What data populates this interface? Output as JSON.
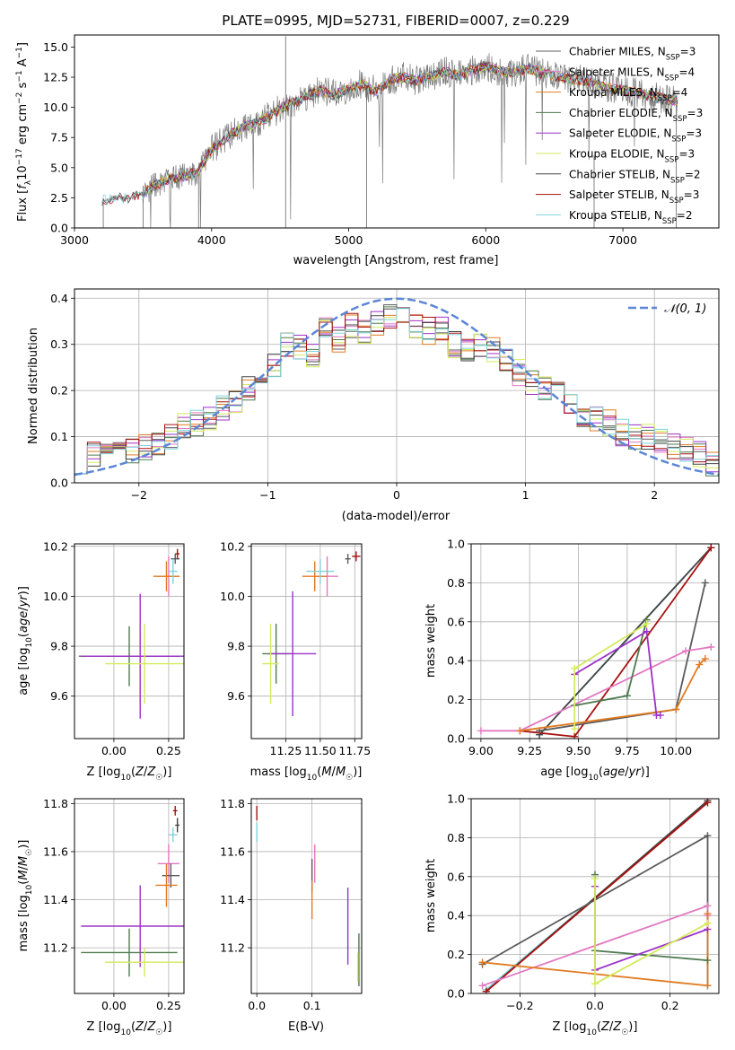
{
  "figure_title": "PLATE=0995, MJD=52731, FIBERID=0007, z=0.229",
  "colors": {
    "Chabrier MILES": "#5b5b5b",
    "Salpeter MILES": "#e377c2",
    "Kroupa MILES": "#e07b20",
    "Chabrier ELODIE": "#4f7a4f",
    "Salpeter ELODIE": "#9d30c9",
    "Kroupa ELODIE": "#d4ea5c",
    "Chabrier STELIB": "#444444",
    "Salpeter STELIB": "#a81010",
    "Kroupa STELIB": "#7fd2dc",
    "normal": "#5c86d6"
  },
  "chart_data": [
    {
      "id": "spectrum",
      "type": "line",
      "title": "PLATE=0995, MJD=52731, FIBERID=0007, z=0.229",
      "xlabel": "wavelength [Angstrom, rest frame]",
      "ylabel": "Flux [f_λ 10^-17 erg cm^-2 s^-1 A^-1]",
      "xlim": [
        3000,
        7700
      ],
      "ylim": [
        0,
        16
      ],
      "xticks": [
        3000,
        4000,
        5000,
        6000,
        7000
      ],
      "yticks": [
        "0.0",
        "2.5",
        "5.0",
        "7.5",
        "10.0",
        "12.5",
        "15.0"
      ],
      "grid": false,
      "legend_position": "top-right",
      "continuum": {
        "x": [
          3200,
          3300,
          3400,
          3500,
          3600,
          3700,
          3800,
          3900,
          4000,
          4100,
          4200,
          4300,
          4400,
          4500,
          4600,
          4700,
          4800,
          4900,
          5000,
          5100,
          5200,
          5300,
          5400,
          5500,
          5600,
          5700,
          5800,
          5900,
          6000,
          6100,
          6200,
          6300,
          6400,
          6500,
          6600,
          6700,
          6800,
          6900,
          7000,
          7100,
          7200,
          7300,
          7400
        ],
        "y": [
          2.3,
          2.5,
          2.4,
          2.9,
          3.6,
          4.1,
          4.3,
          4.6,
          6.5,
          7.4,
          8.2,
          8.6,
          9.1,
          9.9,
          10.4,
          11.0,
          11.4,
          11.0,
          11.6,
          11.9,
          11.3,
          12.3,
          12.5,
          12.2,
          12.6,
          13.0,
          12.6,
          13.1,
          13.4,
          13.0,
          12.9,
          13.2,
          12.9,
          12.6,
          12.4,
          12.2,
          12.0,
          11.6,
          11.4,
          11.2,
          10.9,
          10.7,
          10.5
        ]
      },
      "series": [
        {
          "name": "Chabrier MILES, N_SSP=3",
          "label": "Chabrier MILES, N",
          "sub": "SSP",
          "count": "=3"
        },
        {
          "name": "Salpeter MILES, N_SSP=4",
          "label": "Salpeter MILES, N",
          "sub": "SSP",
          "count": "=4"
        },
        {
          "name": "Kroupa MILES, N_SSP=4",
          "label": "Kroupa MILES, N",
          "sub": "SSP",
          "count": "=4"
        },
        {
          "name": "Chabrier ELODIE, N_SSP=3",
          "label": "Chabrier ELODIE, N",
          "sub": "SSP",
          "count": "=3"
        },
        {
          "name": "Salpeter ELODIE, N_SSP=3",
          "label": "Salpeter ELODIE, N",
          "sub": "SSP",
          "count": "=3"
        },
        {
          "name": "Kroupa ELODIE, N_SSP=3",
          "label": "Kroupa ELODIE, N",
          "sub": "SSP",
          "count": "=3"
        },
        {
          "name": "Chabrier STELIB, N_SSP=2",
          "label": "Chabrier STELIB, N",
          "sub": "SSP",
          "count": "=2"
        },
        {
          "name": "Salpeter STELIB, N_SSP=3",
          "label": "Salpeter STELIB, N",
          "sub": "SSP",
          "count": "=3"
        },
        {
          "name": "Kroupa STELIB, N_SSP=2",
          "label": "Kroupa STELIB, N",
          "sub": "SSP",
          "count": "=2"
        }
      ]
    },
    {
      "id": "residuals",
      "type": "line",
      "xlabel": "(data-model)/error",
      "ylabel": "Normed distribution",
      "xlim": [
        -2.5,
        2.5
      ],
      "ylim": [
        0,
        0.42
      ],
      "xticks": [
        "−2",
        "−1",
        "0",
        "1",
        "2"
      ],
      "yticks": [
        "0.0",
        "0.1",
        "0.2",
        "0.3",
        "0.4"
      ],
      "grid": true,
      "legend_position": "top-right",
      "legend": "𝒩(0, 1)",
      "histogram": {
        "bin_width": 0.1,
        "x": [
          -2.45,
          -2.35,
          -2.25,
          -2.15,
          -2.05,
          -1.95,
          -1.85,
          -1.75,
          -1.65,
          -1.55,
          -1.45,
          -1.35,
          -1.25,
          -1.15,
          -1.05,
          -0.95,
          -0.85,
          -0.75,
          -0.65,
          -0.55,
          -0.45,
          -0.35,
          -0.25,
          -0.15,
          -0.05,
          0.05,
          0.15,
          0.25,
          0.35,
          0.45,
          0.55,
          0.65,
          0.75,
          0.85,
          0.95,
          1.05,
          1.15,
          1.25,
          1.35,
          1.45,
          1.55,
          1.65,
          1.75,
          1.85,
          1.95,
          2.05,
          2.15,
          2.25,
          2.35,
          2.45
        ],
        "y": [
          0.05,
          0.06,
          0.08,
          0.07,
          0.07,
          0.08,
          0.09,
          0.1,
          0.12,
          0.13,
          0.14,
          0.16,
          0.18,
          0.2,
          0.21,
          0.25,
          0.3,
          0.29,
          0.28,
          0.33,
          0.31,
          0.34,
          0.33,
          0.35,
          0.36,
          0.35,
          0.34,
          0.33,
          0.33,
          0.3,
          0.29,
          0.3,
          0.29,
          0.27,
          0.24,
          0.22,
          0.2,
          0.19,
          0.17,
          0.15,
          0.14,
          0.13,
          0.11,
          0.1,
          0.1,
          0.09,
          0.08,
          0.07,
          0.06,
          0.04
        ]
      }
    },
    {
      "id": "age-vs-Z",
      "type": "scatter",
      "xlabel": "Z [log10(Z/Z☉)]",
      "ylabel": "age [log10(age/yr)]",
      "xlim": [
        -0.18,
        0.32
      ],
      "ylim": [
        9.43,
        10.21
      ],
      "xticks": [
        "0.00",
        "0.25"
      ],
      "yticks": [
        "9.6",
        "9.8",
        "10.0",
        "10.2"
      ],
      "grid": true,
      "points": [
        {
          "series": "Chabrier MILES",
          "x": 0.28,
          "y": 10.15,
          "xerr": 0.02,
          "yerr": 0.02
        },
        {
          "series": "Salpeter MILES",
          "x": 0.25,
          "y": 10.08,
          "xerr": 0.05,
          "yerr": 0.08
        },
        {
          "series": "Kroupa MILES",
          "x": 0.24,
          "y": 10.08,
          "xerr": 0.06,
          "yerr": 0.06
        },
        {
          "series": "Kroupa STELIB",
          "x": 0.27,
          "y": 10.1,
          "xerr": 0.02,
          "yerr": 0.05
        },
        {
          "series": "Salpeter STELIB",
          "x": 0.29,
          "y": 10.17,
          "xerr": 0.01,
          "yerr": 0.02
        },
        {
          "series": "Chabrier ELODIE",
          "x": 0.07,
          "y": 9.76,
          "xerr": 0.23,
          "yerr": 0.12
        },
        {
          "series": "Salpeter ELODIE",
          "x": 0.12,
          "y": 9.76,
          "xerr": 0.27,
          "yerr": 0.25
        },
        {
          "series": "Kroupa ELODIE",
          "x": 0.14,
          "y": 9.73,
          "xerr": 0.18,
          "yerr": 0.16
        }
      ]
    },
    {
      "id": "age-vs-mass",
      "type": "scatter",
      "xlabel": "mass [log10(M/M☉)]",
      "ylabel": "",
      "xlim": [
        11.0,
        11.8
      ],
      "ylim": [
        9.43,
        10.21
      ],
      "xticks": [
        "11.25",
        "11.50",
        "11.75"
      ],
      "yticks": [
        "9.6",
        "9.8",
        "10.0",
        "10.2"
      ],
      "grid": true,
      "points": [
        {
          "series": "Chabrier MILES",
          "x": 11.7,
          "y": 10.15,
          "xerr": 0.02,
          "yerr": 0.02
        },
        {
          "series": "Salpeter MILES",
          "x": 11.55,
          "y": 10.08,
          "xerr": 0.08,
          "yerr": 0.08
        },
        {
          "series": "Kroupa MILES",
          "x": 11.46,
          "y": 10.08,
          "xerr": 0.09,
          "yerr": 0.06
        },
        {
          "series": "Kroupa STELIB",
          "x": 11.5,
          "y": 10.1,
          "xerr": 0.1,
          "yerr": 0.05
        },
        {
          "series": "Salpeter STELIB",
          "x": 11.76,
          "y": 10.16,
          "xerr": 0.03,
          "yerr": 0.02
        },
        {
          "series": "Chabrier ELODIE",
          "x": 11.18,
          "y": 9.77,
          "xerr": 0.1,
          "yerr": 0.12
        },
        {
          "series": "Salpeter ELODIE",
          "x": 11.3,
          "y": 9.77,
          "xerr": 0.17,
          "yerr": 0.25
        },
        {
          "series": "Kroupa ELODIE",
          "x": 11.14,
          "y": 9.73,
          "xerr": 0.06,
          "yerr": 0.16
        }
      ]
    },
    {
      "id": "mass-weight-vs-age",
      "type": "line",
      "xlabel": "age [log10(age/yr)]",
      "ylabel": "mass weight",
      "xlim": [
        8.95,
        10.22
      ],
      "ylim": [
        0,
        1
      ],
      "xticks": [
        "9.00",
        "9.25",
        "9.50",
        "9.75",
        "10.00"
      ],
      "yticks": [
        "0.0",
        "0.2",
        "0.4",
        "0.6",
        "0.8",
        "1.0"
      ],
      "grid": true,
      "series": [
        {
          "series": "Kroupa STELIB",
          "x": [
            9.3,
            10.18
          ],
          "y": [
            0.02,
            0.98
          ]
        },
        {
          "series": "Chabrier STELIB",
          "x": [
            9.3,
            10.18
          ],
          "y": [
            0.02,
            0.98
          ]
        },
        {
          "series": "Salpeter STELIB",
          "x": [
            9.2,
            9.48,
            10.18
          ],
          "y": [
            0.04,
            0.01,
            0.98
          ]
        },
        {
          "series": "Chabrier MILES",
          "x": [
            9.3,
            10.0,
            10.15
          ],
          "y": [
            0.04,
            0.15,
            0.8
          ]
        },
        {
          "series": "Salpeter MILES",
          "x": [
            9.0,
            9.2,
            10.05,
            10.18
          ],
          "y": [
            0.04,
            0.04,
            0.45,
            0.47
          ]
        },
        {
          "series": "Kroupa MILES",
          "x": [
            9.2,
            10.0,
            10.12,
            10.15
          ],
          "y": [
            0.04,
            0.15,
            0.38,
            0.41
          ]
        },
        {
          "series": "Chabrier ELODIE",
          "x": [
            9.48,
            9.75,
            9.85
          ],
          "y": [
            0.17,
            0.22,
            0.61
          ]
        },
        {
          "series": "Salpeter ELODIE",
          "x": [
            9.48,
            9.85,
            9.9,
            9.92
          ],
          "y": [
            0.33,
            0.55,
            0.12,
            0.12
          ]
        },
        {
          "series": "Kroupa ELODIE",
          "x": [
            9.48,
            9.48,
            9.85
          ],
          "y": [
            0.05,
            0.36,
            0.59
          ]
        }
      ]
    },
    {
      "id": "mass-vs-Z",
      "type": "scatter",
      "xlabel": "Z [log10(Z/Z☉)]",
      "ylabel": "mass [log10(M/M☉)]",
      "xlim": [
        -0.18,
        0.32
      ],
      "ylim": [
        11.01,
        11.82
      ],
      "xticks": [
        "0.00",
        "0.25"
      ],
      "yticks": [
        "11.2",
        "11.4",
        "11.6",
        "11.8"
      ],
      "grid": true,
      "points": [
        {
          "series": "Chabrier STELIB",
          "x": 0.29,
          "y": 11.71,
          "xerr": 0.01,
          "yerr": 0.03
        },
        {
          "series": "Salpeter STELIB",
          "x": 0.28,
          "y": 11.77,
          "xerr": 0.01,
          "yerr": 0.02
        },
        {
          "series": "Kroupa STELIB",
          "x": 0.27,
          "y": 11.67,
          "xerr": 0.02,
          "yerr": 0.03
        },
        {
          "series": "Salpeter MILES",
          "x": 0.25,
          "y": 11.55,
          "xerr": 0.05,
          "yerr": 0.08
        },
        {
          "series": "Chabrier MILES",
          "x": 0.26,
          "y": 11.5,
          "xerr": 0.04,
          "yerr": 0.05
        },
        {
          "series": "Kroupa MILES",
          "x": 0.24,
          "y": 11.46,
          "xerr": 0.05,
          "yerr": 0.09
        },
        {
          "series": "Salpeter ELODIE",
          "x": 0.12,
          "y": 11.29,
          "xerr": 0.27,
          "yerr": 0.17
        },
        {
          "series": "Chabrier ELODIE",
          "x": 0.07,
          "y": 11.18,
          "xerr": 0.22,
          "yerr": 0.1
        },
        {
          "series": "Kroupa ELODIE",
          "x": 0.14,
          "y": 11.14,
          "xerr": 0.18,
          "yerr": 0.06
        }
      ]
    },
    {
      "id": "mass-vs-EBV",
      "type": "scatter",
      "xlabel": "E(B-V)",
      "ylabel": "",
      "xlim": [
        -0.01,
        0.19
      ],
      "ylim": [
        11.01,
        11.82
      ],
      "xticks": [
        "0.0",
        "0.1"
      ],
      "yticks": [
        "11.2",
        "11.4",
        "11.6",
        "11.8"
      ],
      "grid": true,
      "points": [
        {
          "series": "Salpeter STELIB",
          "x": 0.0,
          "y": 11.76,
          "xerr": 0.0,
          "yerr": 0.03
        },
        {
          "series": "Kroupa STELIB",
          "x": 0.0,
          "y": 11.68,
          "xerr": 0.0,
          "yerr": 0.04
        },
        {
          "series": "Salpeter MILES",
          "x": 0.105,
          "y": 11.55,
          "xerr": 0.0,
          "yerr": 0.08
        },
        {
          "series": "Chabrier MILES",
          "x": 0.1,
          "y": 11.5,
          "xerr": 0.0,
          "yerr": 0.07
        },
        {
          "series": "Kroupa MILES",
          "x": 0.1,
          "y": 11.4,
          "xerr": 0.0,
          "yerr": 0.08
        },
        {
          "series": "Salpeter ELODIE",
          "x": 0.165,
          "y": 11.29,
          "xerr": 0.0,
          "yerr": 0.16
        },
        {
          "series": "Chabrier ELODIE",
          "x": 0.185,
          "y": 11.15,
          "xerr": 0.0,
          "yerr": 0.11
        },
        {
          "series": "Kroupa ELODIE",
          "x": 0.183,
          "y": 11.12,
          "xerr": 0.0,
          "yerr": 0.06
        }
      ]
    },
    {
      "id": "mass-weight-vs-Z",
      "type": "line",
      "xlabel": "Z [log10(Z/Z☉)]",
      "ylabel": "mass weight",
      "xlim": [
        -0.33,
        0.33
      ],
      "ylim": [
        0,
        1
      ],
      "xticks": [
        "−0.2",
        "0.0",
        "0.2"
      ],
      "yticks": [
        "0.0",
        "0.2",
        "0.4",
        "0.6",
        "0.8",
        "1.0"
      ],
      "grid": true,
      "series": [
        {
          "series": "Kroupa STELIB",
          "x": [
            -0.29,
            0.3
          ],
          "y": [
            0.02,
            0.98
          ]
        },
        {
          "series": "Chabrier STELIB",
          "x": [
            -0.29,
            0.3
          ],
          "y": [
            0.01,
            0.99
          ]
        },
        {
          "series": "Salpeter STELIB",
          "x": [
            -0.29,
            0.3
          ],
          "y": [
            0.01,
            0.98
          ]
        },
        {
          "series": "Chabrier MILES",
          "x": [
            -0.3,
            0.3,
            0.3
          ],
          "y": [
            0.15,
            0.81,
            0.04
          ]
        },
        {
          "series": "Salpeter MILES",
          "x": [
            -0.3,
            0.3,
            0.3
          ],
          "y": [
            0.04,
            0.45,
            0.4
          ]
        },
        {
          "series": "Kroupa MILES",
          "x": [
            -0.3,
            0.3,
            0.3
          ],
          "y": [
            0.16,
            0.04,
            0.41
          ]
        },
        {
          "series": "Chabrier ELODIE",
          "x": [
            0.0,
            0.0,
            0.3
          ],
          "y": [
            0.61,
            0.22,
            0.17
          ]
        },
        {
          "series": "Salpeter ELODIE",
          "x": [
            0.0,
            0.0,
            0.3
          ],
          "y": [
            0.55,
            0.12,
            0.33
          ]
        },
        {
          "series": "Kroupa ELODIE",
          "x": [
            0.0,
            0.0,
            0.3
          ],
          "y": [
            0.59,
            0.05,
            0.36
          ]
        }
      ]
    }
  ]
}
